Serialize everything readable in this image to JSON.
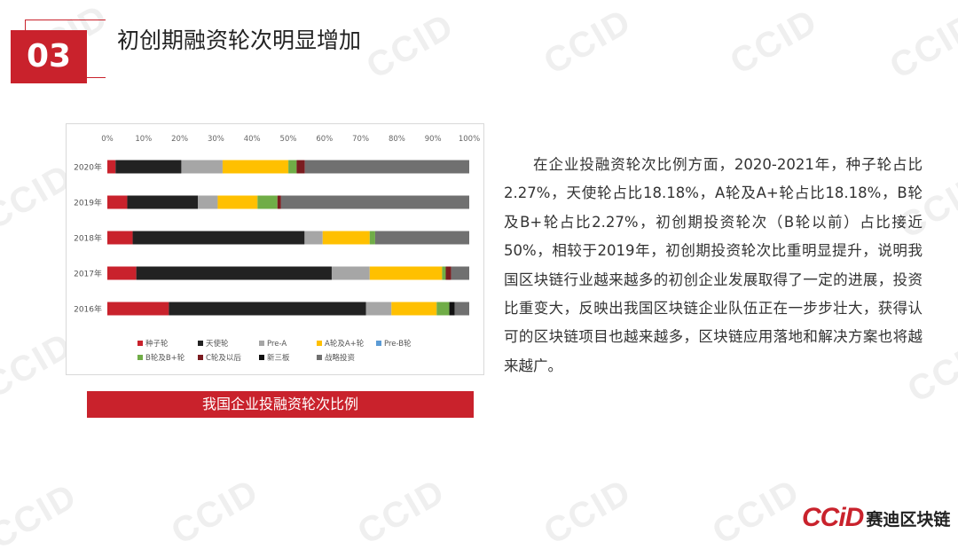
{
  "header": {
    "badge": "03",
    "title": "初创期融资轮次明显增加"
  },
  "watermark_text": "CCID",
  "caption": "我国企业投融资轮次比例",
  "paragraph": "在企业投融资轮次比例方面，2020-2021年，种子轮占比2.27%，天使轮占比18.18%，A轮及A+轮占比18.18%，B轮及B+轮占比2.27%，初创期投资轮次（B轮以前）占比接近50%，相较于2019年，初创期投资轮次比重明显提升，说明我国区块链行业越来越多的初创企业发展取得了一定的进展，投资比重变大，反映出我国区块链企业队伍正在一步步壮大，获得认可的区块链项目也越来越多，区块链应用落地和解决方案也将越来越广。",
  "logo": {
    "mark": "CCiD",
    "text": "赛迪区块链"
  },
  "chart_data": {
    "type": "bar",
    "orientation": "horizontal",
    "stacked": true,
    "percent": true,
    "categories": [
      "2020年",
      "2019年",
      "2018年",
      "2017年",
      "2016年"
    ],
    "x_ticks": [
      "0%",
      "10%",
      "20%",
      "30%",
      "40%",
      "50%",
      "60%",
      "70%",
      "80%",
      "90%",
      "100%"
    ],
    "xlim": [
      0,
      100
    ],
    "legend_position": "bottom",
    "grid": false,
    "series": [
      {
        "name": "种子轮",
        "color": "#c9222c",
        "values": [
          2.27,
          5.5,
          7.0,
          8.0,
          17.0
        ]
      },
      {
        "name": "天使轮",
        "color": "#222222",
        "values": [
          18.18,
          19.5,
          47.5,
          54.0,
          54.5
        ]
      },
      {
        "name": "Pre-A",
        "color": "#a6a6a6",
        "values": [
          11.4,
          5.5,
          5.0,
          10.5,
          7.0
        ]
      },
      {
        "name": "A轮及A+轮",
        "color": "#ffc000",
        "values": [
          18.18,
          11.0,
          13.0,
          20.0,
          12.5
        ]
      },
      {
        "name": "Pre-B轮",
        "color": "#5b9bd5",
        "values": [
          0,
          0,
          0,
          0,
          0
        ]
      },
      {
        "name": "B轮及B+轮",
        "color": "#70ad47",
        "values": [
          2.27,
          5.5,
          1.5,
          1.0,
          3.5
        ]
      },
      {
        "name": "C轮及以后",
        "color": "#7b1c20",
        "values": [
          2.27,
          1.0,
          0,
          1.5,
          0
        ]
      },
      {
        "name": "新三板",
        "color": "#111111",
        "values": [
          0,
          0,
          0,
          0,
          1.5
        ]
      },
      {
        "name": "战略投资",
        "color": "#707070",
        "values": [
          45.43,
          52.0,
          26.0,
          5.0,
          4.0
        ]
      }
    ]
  }
}
